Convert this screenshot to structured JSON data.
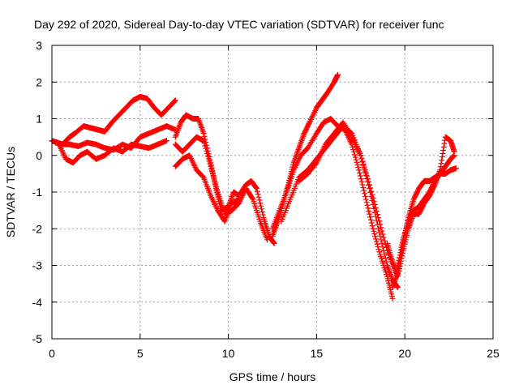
{
  "chart_data": {
    "type": "scatter",
    "title": "Day 292 of 2020, Sidereal Day-to-day VTEC variation (SDTVAR) for receiver func",
    "xlabel": "GPS time / hours",
    "ylabel": "SDTVAR / TECUs",
    "xlim": [
      0,
      25
    ],
    "ylim": [
      -5,
      3
    ],
    "x_ticks": [
      "0",
      "5",
      "10",
      "15",
      "20",
      "25"
    ],
    "y_ticks": [
      "3",
      "2",
      "1",
      "0",
      "-1",
      "-2",
      "-3",
      "-4",
      "-5"
    ],
    "grid": true,
    "marker": "plus",
    "color": "#ff0000",
    "series": [
      {
        "x": [
          0.0,
          0.3,
          0.6,
          1.0,
          1.3,
          1.8,
          2.2,
          2.6,
          3.0,
          3.4,
          3.8,
          4.2,
          4.6,
          5.0,
          5.4,
          5.8,
          6.2,
          6.6,
          7.0
        ],
        "y": [
          0.4,
          0.35,
          0.3,
          0.5,
          0.6,
          0.8,
          0.75,
          0.7,
          0.65,
          0.9,
          1.1,
          1.3,
          1.5,
          1.6,
          1.55,
          1.3,
          1.1,
          1.3,
          1.5
        ]
      },
      {
        "x": [
          0.2,
          0.6,
          1.0,
          1.5,
          2.0,
          2.5,
          3.0,
          3.5,
          4.0,
          4.5,
          5.0,
          5.5,
          6.0,
          6.5,
          7.0
        ],
        "y": [
          0.35,
          0.3,
          0.3,
          0.25,
          0.35,
          0.3,
          0.2,
          0.15,
          0.3,
          0.2,
          0.5,
          0.6,
          0.7,
          0.8,
          0.7
        ]
      },
      {
        "x": [
          0.4,
          0.8,
          1.2,
          1.6,
          2.0,
          2.5,
          3.0,
          3.5,
          4.0,
          4.5,
          5.0,
          5.5,
          6.0,
          6.5
        ],
        "y": [
          0.3,
          -0.1,
          -0.2,
          0.0,
          0.1,
          -0.1,
          0.0,
          0.2,
          0.1,
          0.3,
          0.25,
          0.2,
          0.3,
          0.4
        ]
      },
      {
        "x": [
          7.0,
          7.3,
          7.6,
          8.0,
          8.3,
          8.6,
          9.0,
          9.3,
          9.6,
          10.0,
          10.3,
          10.6,
          11.0,
          11.3,
          11.6,
          12.0,
          12.3,
          12.6
        ],
        "y": [
          0.5,
          0.9,
          1.1,
          1.0,
          1.0,
          0.6,
          -0.2,
          -0.9,
          -1.5,
          -1.4,
          -1.0,
          -1.1,
          -0.8,
          -0.7,
          -0.9,
          -1.7,
          -2.2,
          -2.4
        ]
      },
      {
        "x": [
          7.0,
          7.4,
          7.8,
          8.2,
          8.6,
          9.0,
          9.4,
          9.8,
          10.2,
          10.6,
          11.0,
          11.4,
          11.8,
          12.2
        ],
        "y": [
          0.3,
          0.1,
          0.3,
          0.5,
          0.4,
          -0.3,
          -1.0,
          -1.6,
          -1.5,
          -1.3,
          -0.9,
          -1.2,
          -1.8,
          -2.3
        ]
      },
      {
        "x": [
          7.0,
          7.4,
          7.8,
          8.2,
          8.6,
          9.0,
          9.4,
          9.8,
          10.2,
          10.6
        ],
        "y": [
          -0.3,
          -0.1,
          0.0,
          -0.4,
          -0.6,
          -1.1,
          -1.5,
          -1.8,
          -1.3,
          -1.2
        ]
      },
      {
        "x": [
          12.5,
          12.8,
          13.1,
          13.4,
          13.7,
          14.0,
          14.3,
          14.6,
          15.0,
          15.3,
          15.6,
          16.0,
          16.2
        ],
        "y": [
          -2.2,
          -1.8,
          -1.3,
          -0.8,
          -0.2,
          0.2,
          0.6,
          0.9,
          1.3,
          1.5,
          1.7,
          2.0,
          2.2
        ]
      },
      {
        "x": [
          12.5,
          12.9,
          13.3,
          13.7,
          14.1,
          14.5,
          15.0,
          15.4,
          15.8,
          16.2,
          16.6,
          17.0,
          17.4,
          17.8,
          18.2,
          18.6,
          19.0,
          19.3
        ],
        "y": [
          -2.0,
          -1.5,
          -1.0,
          -0.4,
          0.0,
          0.2,
          0.6,
          0.9,
          1.0,
          0.8,
          0.7,
          0.3,
          -0.4,
          -1.2,
          -2.0,
          -2.7,
          -3.3,
          -3.9
        ]
      },
      {
        "x": [
          13.0,
          13.5,
          14.0,
          14.5,
          15.0,
          15.5,
          16.0,
          16.5,
          17.0,
          17.5,
          18.0,
          18.5,
          19.0,
          19.5
        ],
        "y": [
          -1.8,
          -1.2,
          -0.6,
          -0.4,
          -0.1,
          0.2,
          0.5,
          0.8,
          0.6,
          0.0,
          -0.8,
          -1.7,
          -2.6,
          -3.2
        ]
      },
      {
        "x": [
          14.0,
          14.5,
          15.0,
          15.5,
          16.0,
          16.5,
          17.0,
          17.5,
          18.0,
          18.5,
          19.0,
          19.3,
          19.6
        ],
        "y": [
          -0.7,
          -0.5,
          -0.2,
          0.3,
          0.6,
          0.9,
          0.5,
          0.0,
          -0.9,
          -2.0,
          -3.0,
          -3.4,
          -3.6
        ]
      },
      {
        "x": [
          19.3,
          19.6,
          19.9,
          20.2,
          20.5,
          20.8,
          21.1,
          21.4,
          21.7,
          22.0,
          22.3,
          22.6,
          22.8
        ],
        "y": [
          -3.6,
          -3.2,
          -2.4,
          -1.7,
          -1.2,
          -0.9,
          -0.7,
          -0.7,
          -0.6,
          -0.5,
          -0.3,
          -0.1,
          0.0
        ]
      },
      {
        "x": [
          19.6,
          19.9,
          20.2,
          20.5,
          20.8,
          21.1,
          21.4,
          21.7,
          22.0,
          22.3,
          22.6,
          22.9
        ],
        "y": [
          -3.0,
          -2.3,
          -1.8,
          -1.5,
          -1.4,
          -1.2,
          -1.0,
          -0.7,
          -0.5,
          -0.5,
          -0.4,
          -0.35
        ]
      },
      {
        "x": [
          19.0,
          19.3,
          19.6,
          19.9,
          20.2,
          20.5,
          20.8,
          21.1,
          21.4,
          21.7,
          22.0,
          22.3,
          22.6,
          22.8
        ],
        "y": [
          -2.4,
          -2.9,
          -3.3,
          -2.6,
          -2.0,
          -1.6,
          -1.6,
          -1.3,
          -1.1,
          -0.8,
          -0.4,
          0.5,
          0.4,
          0.1
        ]
      }
    ]
  }
}
